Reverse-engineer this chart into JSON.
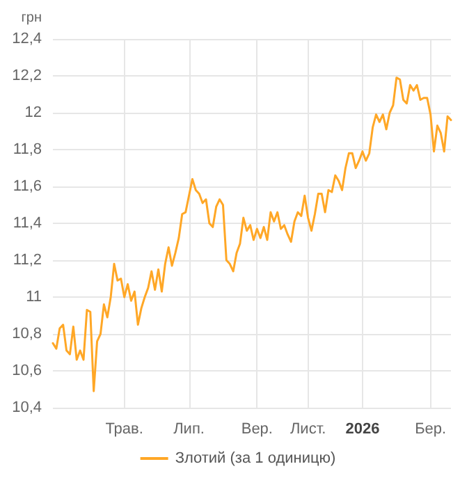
{
  "chart_data": {
    "type": "line",
    "ylabel": "грн",
    "categories": [
      null,
      null,
      null,
      null,
      null,
      null,
      null,
      null,
      null,
      null,
      null,
      null,
      null,
      null,
      null,
      null,
      null,
      null,
      null,
      null,
      null,
      "Трав.",
      null,
      null,
      null,
      null,
      null,
      null,
      null,
      null,
      null,
      null,
      null,
      null,
      null,
      null,
      null,
      null,
      null,
      null,
      "Лип.",
      null,
      null,
      null,
      null,
      null,
      null,
      null,
      null,
      null,
      null,
      null,
      null,
      null,
      null,
      null,
      null,
      null,
      null,
      null,
      "Вер.",
      null,
      null,
      null,
      null,
      null,
      null,
      null,
      null,
      null,
      null,
      null,
      null,
      null,
      null,
      "Лист.",
      null,
      null,
      null,
      null,
      null,
      null,
      null,
      null,
      null,
      null,
      null,
      null,
      null,
      null,
      null,
      "2026",
      null,
      null,
      null,
      null,
      null,
      null,
      null,
      null,
      null,
      null,
      null,
      null,
      null,
      null,
      null,
      null,
      null,
      null,
      null,
      "Бер.",
      null,
      null,
      null,
      null,
      null,
      null
    ],
    "ylim": [
      10.4,
      12.4
    ],
    "yticks": [
      {
        "value": 10.4,
        "label": "10,4"
      },
      {
        "value": 10.6,
        "label": "10,6"
      },
      {
        "value": 10.8,
        "label": "10,8"
      },
      11,
      {
        "value": 11.2,
        "label": "11,2"
      },
      {
        "value": 11.4,
        "label": "11,4"
      },
      {
        "value": 11.6,
        "label": "11,6"
      },
      {
        "value": 11.8,
        "label": "11,8"
      },
      12,
      {
        "value": 12.2,
        "label": "12,2"
      },
      {
        "value": 12.4,
        "label": "12,4"
      }
    ],
    "grid": true,
    "legend": "bottom",
    "marker": "none",
    "line_style": "solid",
    "series": [
      {
        "name": "Злотий (за 1 одиницю)",
        "color": "#ffa726",
        "values": [
          10.75,
          10.72,
          10.83,
          10.85,
          10.71,
          10.69,
          10.84,
          10.66,
          10.71,
          10.66,
          10.93,
          10.92,
          10.49,
          10.76,
          10.8,
          10.96,
          10.89,
          11.0,
          11.18,
          11.09,
          11.1,
          11.0,
          11.07,
          10.98,
          11.03,
          10.85,
          10.94,
          11.0,
          11.05,
          11.14,
          11.04,
          11.15,
          11.03,
          11.18,
          11.27,
          11.17,
          11.24,
          11.32,
          11.45,
          11.46,
          11.55,
          11.64,
          11.58,
          11.56,
          11.51,
          11.53,
          11.4,
          11.38,
          11.49,
          11.53,
          11.5,
          11.2,
          11.18,
          11.14,
          11.24,
          11.29,
          11.43,
          11.36,
          11.39,
          11.31,
          11.37,
          11.32,
          11.38,
          11.31,
          11.46,
          11.41,
          11.46,
          11.37,
          11.39,
          11.34,
          11.3,
          11.41,
          11.46,
          11.44,
          11.55,
          11.43,
          11.36,
          11.45,
          11.56,
          11.56,
          11.46,
          11.58,
          11.57,
          11.66,
          11.63,
          11.58,
          11.7,
          11.78,
          11.78,
          11.7,
          11.74,
          11.79,
          11.74,
          11.78,
          11.92,
          11.99,
          11.95,
          11.99,
          11.91,
          12.0,
          12.04,
          12.19,
          12.18,
          12.07,
          12.05,
          12.15,
          12.12,
          12.15,
          12.07,
          12.08,
          12.08,
          11.99,
          11.79,
          11.93,
          11.89,
          11.79,
          11.98,
          11.96
        ]
      }
    ]
  }
}
